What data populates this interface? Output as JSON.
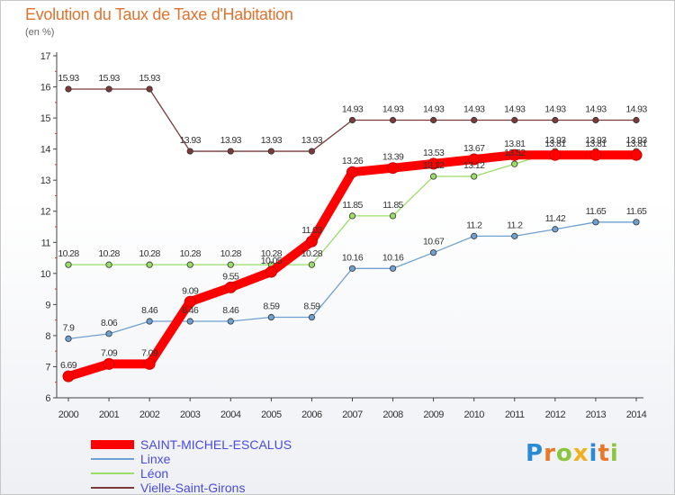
{
  "chart_data": {
    "type": "line",
    "title": "Evolution du Taux de Taxe d'Habitation",
    "subtitle": "(en %)",
    "x": [
      "2000",
      "2001",
      "2002",
      "2003",
      "2004",
      "2005",
      "2006",
      "2007",
      "2008",
      "2009",
      "2010",
      "2011",
      "2012",
      "2013",
      "2014"
    ],
    "ylim": [
      6,
      17
    ],
    "yticks": [
      "6",
      "7",
      "8",
      "9",
      "10",
      "11",
      "12",
      "13",
      "14",
      "15",
      "16",
      "17"
    ],
    "grid": false,
    "legend_position": "bottom-left",
    "series": [
      {
        "name": "SAINT-MICHEL-ESCALUS",
        "color": "#ff0000",
        "values": [
          6.69,
          7.09,
          7.09,
          9.09,
          9.55,
          10.05,
          11.03,
          13.26,
          13.39,
          13.53,
          13.67,
          13.81,
          13.81,
          13.81,
          13.81
        ],
        "labels": [
          "6.69",
          "7.09",
          "7.09",
          "9.09",
          "9.55",
          "10.05",
          "11.03",
          "13.26",
          "13.39",
          "13.53",
          "13.67",
          "13.81",
          "13.81",
          "13.81",
          "13.81"
        ]
      },
      {
        "name": "Linxe",
        "color": "#6fa0d2",
        "values": [
          7.9,
          8.06,
          8.46,
          8.46,
          8.46,
          8.59,
          8.59,
          10.16,
          10.16,
          10.67,
          11.2,
          11.2,
          11.42,
          11.65,
          11.65
        ],
        "labels": [
          "7.9",
          "8.06",
          "8.46",
          "8.46",
          "8.46",
          "8.59",
          "8.59",
          "10.16",
          "10.16",
          "10.67",
          "11.2",
          "11.2",
          "11.42",
          "11.65",
          "11.65"
        ]
      },
      {
        "name": "Léon",
        "color": "#99dd66",
        "values": [
          10.28,
          10.28,
          10.28,
          10.28,
          10.28,
          10.28,
          10.28,
          11.85,
          11.85,
          13.12,
          13.12,
          13.52,
          13.93,
          13.93,
          13.93
        ],
        "labels": [
          "10.28",
          "10.28",
          "10.28",
          "10.28",
          "10.28",
          "10.28",
          "10.28",
          "11.85",
          "11.85",
          "13.12",
          "13.12",
          "13.52",
          "13.93",
          "13.93",
          "13.93"
        ]
      },
      {
        "name": "Vielle-Saint-Girons",
        "color": "#7a3a3a",
        "values": [
          15.93,
          15.93,
          15.93,
          13.93,
          13.93,
          13.93,
          13.93,
          14.93,
          14.93,
          14.93,
          14.93,
          14.93,
          14.93,
          14.93,
          14.93
        ],
        "labels": [
          "15.93",
          "15.93",
          "15.93",
          "13.93",
          "13.93",
          "13.93",
          "13.93",
          "14.93",
          "14.93",
          "14.93",
          "14.93",
          "14.93",
          "14.93",
          "14.93",
          "14.93"
        ]
      }
    ]
  },
  "logo": {
    "text": "Proxiti",
    "letters": [
      {
        "char": "P",
        "color": "#2a8ad4"
      },
      {
        "char": "r",
        "color": "#e8782a"
      },
      {
        "char": "o",
        "color": "#8cc63f"
      },
      {
        "char": "x",
        "color": "#f2b01e"
      },
      {
        "char": "i",
        "color": "#2a8ad4"
      },
      {
        "char": "t",
        "color": "#e8782a"
      },
      {
        "char": "i",
        "color": "#8cc63f"
      }
    ]
  }
}
